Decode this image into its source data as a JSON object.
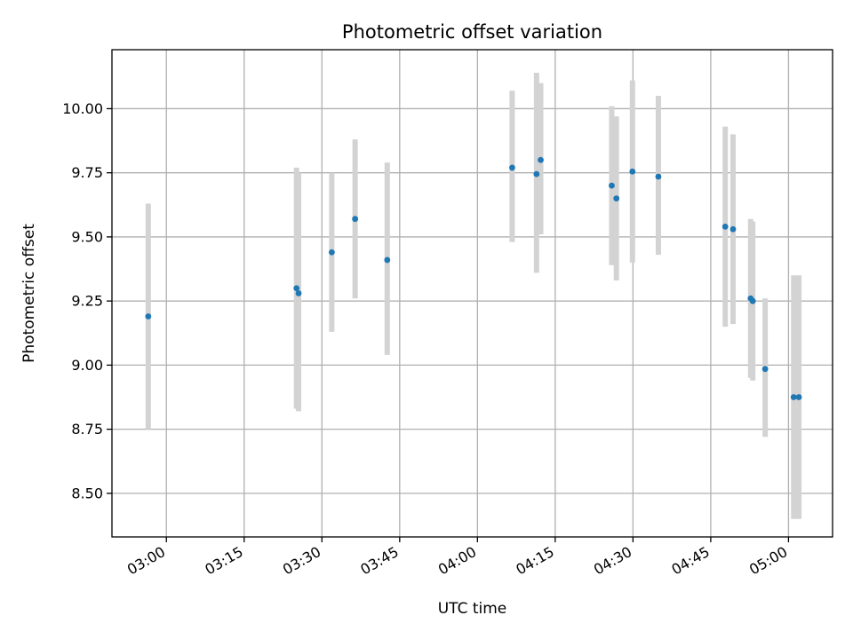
{
  "chart_data": {
    "type": "scatter",
    "title": "Photometric offset variation",
    "xlabel": "UTC time",
    "ylabel": "Photometric offset",
    "x_unit": "HH:MM",
    "xlim": [
      "02:49.5",
      "05:08.5"
    ],
    "ylim": [
      8.33,
      10.23
    ],
    "x_ticks": [
      "03:00",
      "03:15",
      "03:30",
      "03:45",
      "04:00",
      "04:15",
      "04:30",
      "04:45",
      "05:00"
    ],
    "y_ticks": [
      "8.50",
      "8.75",
      "9.00",
      "9.25",
      "9.50",
      "9.75",
      "10.00"
    ],
    "grid": true,
    "legend": "none",
    "colors": {
      "marker": "#1f77b4",
      "errorbar": "#d3d3d3",
      "grid": "#b0b0b0"
    },
    "series": [
      {
        "points": [
          {
            "x": "02:56.5",
            "y": 9.19,
            "ymin": 8.75,
            "ymax": 9.63
          },
          {
            "x": "03:25.1",
            "y": 9.3,
            "ymin": 8.83,
            "ymax": 9.77
          },
          {
            "x": "03:25.5",
            "y": 9.28,
            "ymin": 8.82,
            "ymax": 9.75
          },
          {
            "x": "03:31.9",
            "y": 9.44,
            "ymin": 9.13,
            "ymax": 9.75
          },
          {
            "x": "03:36.4",
            "y": 9.57,
            "ymin": 9.26,
            "ymax": 9.88
          },
          {
            "x": "03:42.6",
            "y": 9.41,
            "ymin": 9.04,
            "ymax": 9.79
          },
          {
            "x": "04:06.7",
            "y": 9.77,
            "ymin": 9.48,
            "ymax": 10.07
          },
          {
            "x": "04:11.4",
            "y": 9.745,
            "ymin": 9.36,
            "ymax": 10.14
          },
          {
            "x": "04:12.2",
            "y": 9.8,
            "ymin": 9.51,
            "ymax": 10.1
          },
          {
            "x": "04:25.9",
            "y": 9.7,
            "ymin": 9.39,
            "ymax": 10.01
          },
          {
            "x": "04:26.8",
            "y": 9.65,
            "ymin": 9.33,
            "ymax": 9.97
          },
          {
            "x": "04:29.9",
            "y": 9.755,
            "ymin": 9.4,
            "ymax": 10.11
          },
          {
            "x": "04:34.9",
            "y": 9.735,
            "ymin": 9.43,
            "ymax": 10.05
          },
          {
            "x": "04:47.8",
            "y": 9.54,
            "ymin": 9.15,
            "ymax": 9.93
          },
          {
            "x": "04:49.3",
            "y": 9.53,
            "ymin": 9.16,
            "ymax": 9.9
          },
          {
            "x": "04:52.7",
            "y": 9.26,
            "ymin": 8.95,
            "ymax": 9.57
          },
          {
            "x": "04:53.1",
            "y": 9.25,
            "ymin": 8.94,
            "ymax": 9.56
          },
          {
            "x": "04:55.5",
            "y": 8.985,
            "ymin": 8.72,
            "ymax": 9.26
          },
          {
            "x": "05:01.0",
            "y": 8.875,
            "ymin": 8.4,
            "ymax": 9.35
          },
          {
            "x": "05:02.0",
            "y": 8.875,
            "ymin": 8.4,
            "ymax": 9.35
          }
        ]
      }
    ]
  }
}
